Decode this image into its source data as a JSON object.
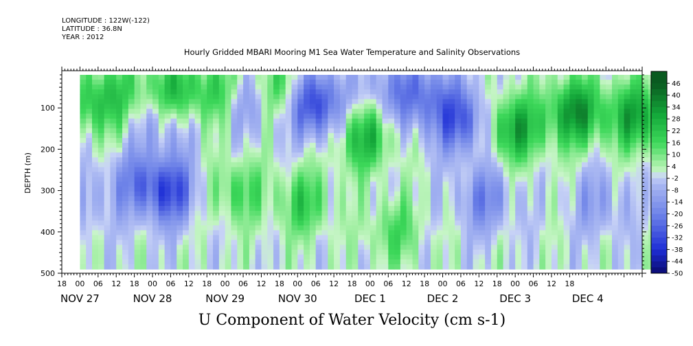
{
  "header": {
    "longitude": "LONGITUDE : 122W(-122)",
    "latitude": "LATITUDE : 36.8N",
    "year": "YEAR : 2012"
  },
  "title": "Hourly Gridded MBARI Mooring M1 Sea Water Temperature and Salinity Observations",
  "bottom_title": "U Component of Water Velocity (cm s-1)",
  "colors": {
    "neg_strong": "#1e2fd6",
    "neg_mid": "#6f84e8",
    "neg_light": "#aab8f2",
    "pos_light": "#a6f0a6",
    "pos_mid": "#3dd85a",
    "pos_strong": "#0e8a2c",
    "background": "#ffffff"
  },
  "chart_data": {
    "type": "heatmap",
    "title": "Hourly Gridded MBARI Mooring M1 Sea Water Temperature and Salinity Observations",
    "xlabel": "",
    "ylabel": "DEPTH (m)",
    "x_range_hours_label": "Nov 26 18:00 to Dec 4 18:00",
    "hour_ticks": [
      "18",
      "00",
      "06",
      "12",
      "18",
      "00",
      "06",
      "12",
      "18",
      "00",
      "06",
      "12",
      "18",
      "00",
      "06",
      "12",
      "18",
      "00",
      "06",
      "12",
      "18",
      "00",
      "06",
      "12",
      "18",
      "00",
      "06",
      "12",
      "18"
    ],
    "day_labels": [
      "NOV 27",
      "NOV 28",
      "NOV 29",
      "NOV 30",
      "DEC  1",
      "DEC  2",
      "DEC  3",
      "DEC  4"
    ],
    "day_label_hour_index": [
      1,
      5,
      9,
      13,
      17,
      21,
      25,
      29
    ],
    "y_ticks": [
      "100",
      "200",
      "300",
      "400",
      "500"
    ],
    "y_tick_values": [
      100,
      200,
      300,
      400,
      500
    ],
    "ylim": [
      10,
      500
    ],
    "y_reversed": true,
    "data_depth_range": [
      20,
      490
    ],
    "data_time_range_hours": [
      6,
      198
    ],
    "colorbar_levels": [
      "46",
      "40",
      "34",
      "28",
      "22",
      "16",
      "10",
      "4",
      "-2",
      "-8",
      "-14",
      "-20",
      "-26",
      "-32",
      "-38",
      "-44",
      "-50"
    ],
    "colorbar_range": [
      -50,
      52
    ],
    "blobs": [
      {
        "t": 10,
        "d": 90,
        "v": 20
      },
      {
        "t": 20,
        "d": 60,
        "v": 12
      },
      {
        "t": 34,
        "d": 120,
        "v": -20
      },
      {
        "t": 36,
        "d": 70,
        "v": 30
      },
      {
        "t": 35.5,
        "d": 300,
        "v": -30
      },
      {
        "t": 52,
        "d": 60,
        "v": 22
      },
      {
        "t": 60,
        "d": 80,
        "v": -18
      },
      {
        "t": 72,
        "d": 50,
        "v": 18
      },
      {
        "t": 84,
        "d": 90,
        "v": -36
      },
      {
        "t": 100,
        "d": 170,
        "v": 26
      },
      {
        "t": 108,
        "d": 60,
        "v": -14
      },
      {
        "t": 120,
        "d": 70,
        "v": -20
      },
      {
        "t": 132,
        "d": 130,
        "v": -28
      },
      {
        "t": 150,
        "d": 150,
        "v": 30
      },
      {
        "t": 170,
        "d": 110,
        "v": 34
      },
      {
        "t": 190,
        "d": 120,
        "v": 30
      },
      {
        "t": 80,
        "d": 330,
        "v": 18
      },
      {
        "t": 58,
        "d": 300,
        "v": 16
      },
      {
        "t": 24,
        "d": 280,
        "v": -16
      },
      {
        "t": 6,
        "d": 330,
        "v": -10
      },
      {
        "t": 140,
        "d": 320,
        "v": -18
      },
      {
        "t": 178,
        "d": 330,
        "v": -12
      },
      {
        "t": 110,
        "d": 400,
        "v": 14
      }
    ]
  }
}
